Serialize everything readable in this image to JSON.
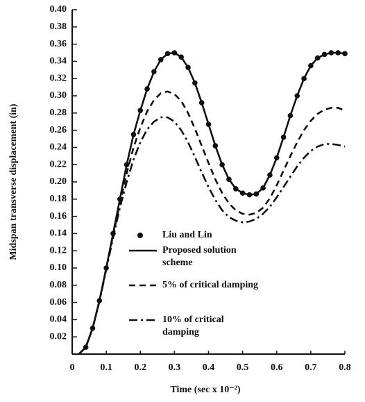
{
  "chart_data": {
    "type": "line",
    "x_label": "Time (sec x 10⁻²)",
    "y_label": "Midspan transverse displacement (in)",
    "x": [
      0.02,
      0.04,
      0.06,
      0.08,
      0.1,
      0.12,
      0.14,
      0.16,
      0.18,
      0.2,
      0.22,
      0.24,
      0.26,
      0.28,
      0.3,
      0.32,
      0.34,
      0.36,
      0.38,
      0.4,
      0.42,
      0.44,
      0.46,
      0.48,
      0.5,
      0.52,
      0.54,
      0.56,
      0.58,
      0.6,
      0.62,
      0.64,
      0.66,
      0.68,
      0.7,
      0.72,
      0.74,
      0.76,
      0.78,
      0.8
    ],
    "series": [
      {
        "name": "Liu and Lin",
        "color": "#111111",
        "style": "markers",
        "values": [
          null,
          0.008,
          0.03,
          0.062,
          0.1,
          0.14,
          0.18,
          0.22,
          0.255,
          0.283,
          0.308,
          0.328,
          0.342,
          0.349,
          0.35,
          0.345,
          0.333,
          0.315,
          0.292,
          0.267,
          0.242,
          0.22,
          0.203,
          0.192,
          0.187,
          0.185,
          0.186,
          0.193,
          0.208,
          0.228,
          0.252,
          0.277,
          0.3,
          0.32,
          0.335,
          0.344,
          0.348,
          0.35,
          0.35,
          0.349
        ]
      },
      {
        "name": "Proposed solution scheme",
        "color": "#111111",
        "style": "solid",
        "values": [
          0,
          0.008,
          0.03,
          0.062,
          0.1,
          0.14,
          0.18,
          0.22,
          0.255,
          0.283,
          0.308,
          0.328,
          0.342,
          0.349,
          0.35,
          0.345,
          0.333,
          0.315,
          0.292,
          0.267,
          0.242,
          0.22,
          0.203,
          0.192,
          0.187,
          0.185,
          0.186,
          0.193,
          0.208,
          0.228,
          0.252,
          0.277,
          0.3,
          0.32,
          0.335,
          0.344,
          0.348,
          0.35,
          0.35,
          0.349
        ]
      },
      {
        "name": "5% of critical damping",
        "color": "#111111",
        "style": "dashed",
        "values": [
          0,
          0.008,
          0.03,
          0.062,
          0.1,
          0.138,
          0.175,
          0.21,
          0.24,
          0.263,
          0.282,
          0.295,
          0.303,
          0.305,
          0.302,
          0.294,
          0.28,
          0.262,
          0.242,
          0.222,
          0.203,
          0.187,
          0.175,
          0.167,
          0.163,
          0.162,
          0.164,
          0.17,
          0.181,
          0.196,
          0.213,
          0.23,
          0.246,
          0.26,
          0.271,
          0.279,
          0.284,
          0.286,
          0.286,
          0.283
        ]
      },
      {
        "name": "10% of critical damping",
        "color": "#111111",
        "style": "dashdot",
        "values": [
          0,
          0.008,
          0.03,
          0.061,
          0.098,
          0.135,
          0.17,
          0.2,
          0.226,
          0.246,
          0.261,
          0.27,
          0.275,
          0.275,
          0.27,
          0.26,
          0.246,
          0.229,
          0.211,
          0.194,
          0.179,
          0.167,
          0.159,
          0.155,
          0.153,
          0.154,
          0.157,
          0.163,
          0.171,
          0.182,
          0.194,
          0.206,
          0.218,
          0.228,
          0.236,
          0.241,
          0.244,
          0.244,
          0.243,
          0.241
        ]
      }
    ],
    "xlim": [
      0,
      0.8
    ],
    "xticks": [
      0,
      0.1,
      0.2,
      0.3,
      0.4,
      0.5,
      0.6,
      0.7,
      0.8
    ],
    "ylim": [
      0,
      0.4
    ],
    "yticks": [
      0.02,
      0.04,
      0.06,
      0.08,
      {
        "value": 0.1,
        "label": "0.10"
      },
      0.12,
      0.14,
      0.16,
      0.18,
      {
        "value": 0.2,
        "label": "0.20"
      },
      0.22,
      0.24,
      0.26,
      0.28,
      {
        "value": 0.3,
        "label": "0.30"
      },
      0.32,
      0.34,
      0.36,
      0.38,
      {
        "value": 0.4,
        "label": "0.40"
      }
    ],
    "grid": false,
    "legend": "lower center"
  }
}
